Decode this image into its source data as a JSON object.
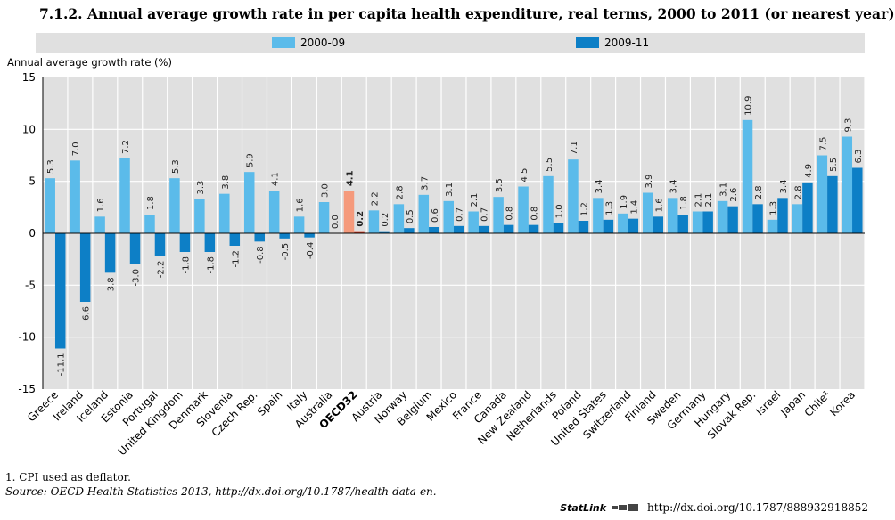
{
  "title": "7.1.2. Annual average growth rate in per capita health expenditure, real terms, 2000 to 2011 (or nearest year)",
  "colors": {
    "series1": "#5bbbea",
    "series2": "#0d7fc6",
    "highlight1": "#f59a7c",
    "highlight2": "#d6391f",
    "plot_bg": "#e0e0e0",
    "grid": "#ffffff"
  },
  "chart_data": {
    "type": "bar",
    "title": "7.1.2. Annual average growth rate in per capita health expenditure, real terms, 2000 to 2011 (or nearest year)",
    "ylabel": "Annual average growth rate (%)",
    "xlabel": "",
    "ylim": [
      -15,
      15
    ],
    "yticks": [
      15,
      10,
      5,
      0,
      -5,
      -10,
      -15
    ],
    "grid": true,
    "legend_position": "top",
    "highlight_category": "OECD32",
    "categories": [
      "Greece",
      "Ireland",
      "Iceland",
      "Estonia",
      "Portugal",
      "United Kingdom",
      "Denmark",
      "Slovenia",
      "Czech Rep.",
      "Spain",
      "Italy",
      "Australia",
      "OECD32",
      "Austria",
      "Norway",
      "Belgium",
      "Mexico",
      "France",
      "Canada",
      "New Zealand",
      "Netherlands",
      "Poland",
      "United States",
      "Switzerland",
      "Finland",
      "Sweden",
      "Germany",
      "Hungary",
      "Slovak Rep.",
      "Israel",
      "Japan",
      "Chile¹",
      "Korea"
    ],
    "series": [
      {
        "name": "2000-09",
        "values": [
          5.3,
          7.0,
          1.6,
          7.2,
          1.8,
          5.3,
          3.3,
          3.8,
          5.9,
          4.1,
          1.6,
          3.0,
          4.1,
          2.2,
          2.8,
          3.7,
          3.1,
          2.1,
          3.5,
          4.5,
          5.5,
          7.1,
          3.4,
          1.9,
          3.9,
          3.4,
          2.1,
          3.1,
          10.9,
          1.3,
          2.8,
          7.5,
          9.3
        ],
        "labels": [
          "5.3",
          "7.0",
          "1.6",
          "7.2",
          "1.8",
          "5.3",
          "3.3",
          "3.8",
          "5.9",
          "4.1",
          "1.6",
          "3.0",
          "4.1",
          "2.2",
          "2.8",
          "3.7",
          "3.1",
          "2.1",
          "3.5",
          "4.5",
          "5.5",
          "7.1",
          "3.4",
          "1.9",
          "3.9",
          "3.4",
          "2.1",
          "3.1",
          "10.9",
          "1.3",
          "2.8",
          "7.5",
          "9.3"
        ]
      },
      {
        "name": "2009-11",
        "values": [
          -11.1,
          -6.6,
          -3.8,
          -3.0,
          -2.2,
          -1.8,
          -1.8,
          -1.2,
          -0.8,
          -0.5,
          -0.4,
          0.0,
          0.2,
          0.2,
          0.5,
          0.6,
          0.7,
          0.7,
          0.8,
          0.8,
          1.0,
          1.2,
          1.3,
          1.4,
          1.6,
          1.8,
          2.1,
          2.6,
          2.8,
          3.4,
          4.9,
          5.5,
          6.3
        ],
        "labels": [
          "-11.1",
          "-6.6",
          "-3.8",
          "-3.0",
          "-2.2",
          "-1.8",
          "-1.8",
          "-1.2",
          "-0.8",
          "-0.5",
          "-0.4",
          "0.0",
          "0.2",
          "0.2",
          "0.5",
          "0.6",
          "0.7",
          "0.7",
          "0.8",
          "0.8",
          "1.0",
          "1.2",
          "1.3",
          "1.4",
          "1.6",
          "1.8",
          "2.1",
          "2.6",
          "2.8",
          "3.4",
          "4.9",
          "5.5",
          "6.3"
        ]
      }
    ]
  },
  "footnote": "1. CPI used as deflator.",
  "source": {
    "label": "Source:",
    "text": "OECD Health Statistics 2013, http://dx.doi.org/10.1787/health-data-en."
  },
  "statlink": {
    "label": "StatLink",
    "url": "http://dx.doi.org/10.1787/888932918852"
  }
}
